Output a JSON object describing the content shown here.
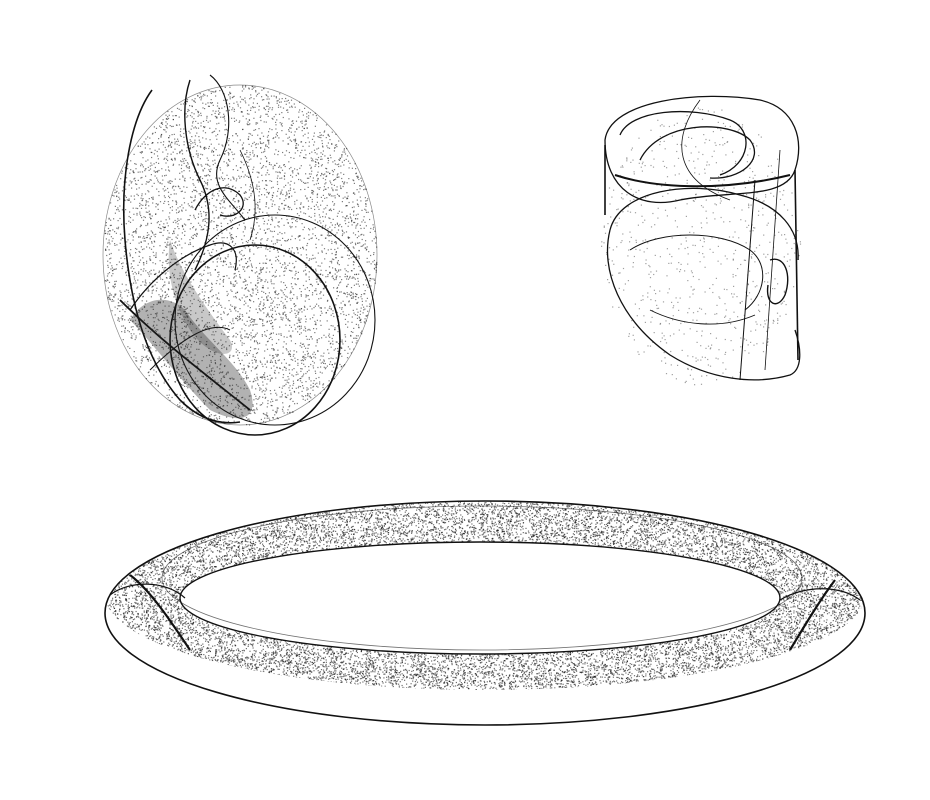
{
  "figure": {
    "background_color": "#ffffff",
    "ink_color": "#111111",
    "panels": [
      {
        "id": "egg-attractor",
        "description_icon": "dense-egg-shaped-attractor-icon"
      },
      {
        "id": "folded-attractor",
        "description_icon": "folded-ribbon-attractor-icon"
      },
      {
        "id": "torus-attractor",
        "description_icon": "torus-ring-attractor-icon"
      }
    ]
  }
}
